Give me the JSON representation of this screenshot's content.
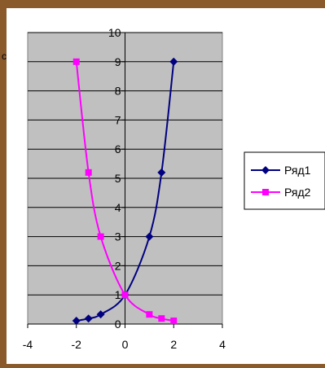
{
  "chart_data": {
    "type": "scatter",
    "title": "",
    "xlabel": "",
    "ylabel": "",
    "xlim": [
      -4,
      4
    ],
    "ylim": [
      0,
      10
    ],
    "xticks": [
      "-4",
      "-2",
      "0",
      "2",
      "4"
    ],
    "yticks": [
      "0",
      "1",
      "2",
      "3",
      "4",
      "5",
      "6",
      "7",
      "8",
      "9",
      "10"
    ],
    "grid": "horizontal",
    "legend_position": "right",
    "plot_background": "#c0c0c0",
    "series": [
      {
        "name": "Ряд1",
        "color": "#000080",
        "marker": "diamond",
        "smooth": true,
        "points": [
          [
            -2,
            0.11
          ],
          [
            -1.5,
            0.19
          ],
          [
            -1,
            0.33
          ],
          [
            0,
            1
          ],
          [
            1,
            3
          ],
          [
            1.5,
            5.2
          ],
          [
            2,
            9
          ]
        ]
      },
      {
        "name": "Ряд2",
        "color": "#ff00ff",
        "marker": "square",
        "smooth": true,
        "points": [
          [
            -2,
            9
          ],
          [
            -1.5,
            5.2
          ],
          [
            -1,
            3
          ],
          [
            0,
            1
          ],
          [
            1,
            0.33
          ],
          [
            1.5,
            0.19
          ],
          [
            2,
            0.11
          ]
        ]
      }
    ]
  },
  "edge_text": {
    "left_top": "c"
  }
}
